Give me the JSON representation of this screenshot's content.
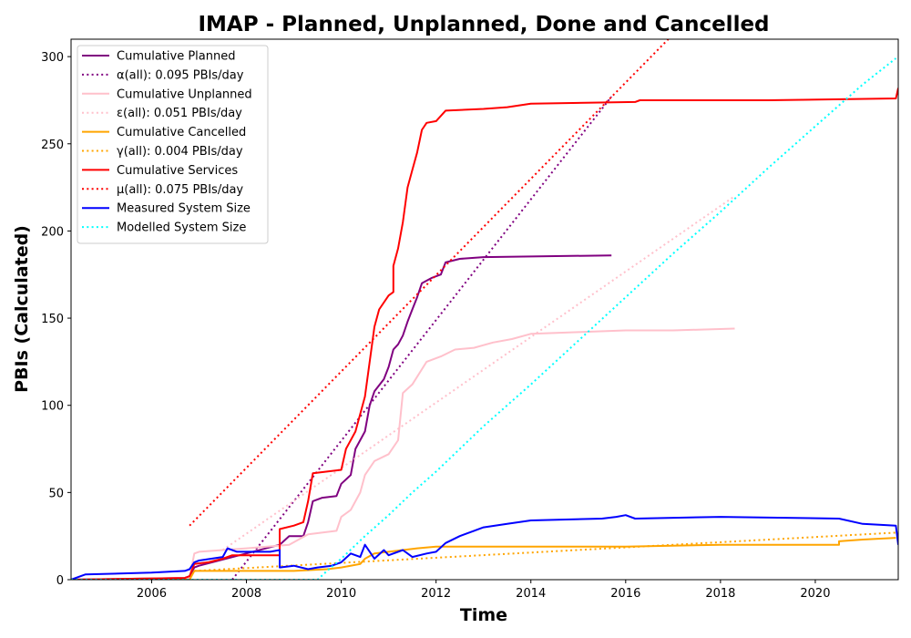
{
  "chart_data": {
    "type": "line",
    "title": "IMAP - Planned, Unplanned, Done  and Cancelled",
    "xlabel": "Time",
    "ylabel": "PBIs (Calculated)",
    "xlim": [
      2004.3,
      2021.75
    ],
    "ylim": [
      0,
      310
    ],
    "x_ticks": [
      2006,
      2008,
      2010,
      2012,
      2014,
      2016,
      2018,
      2020
    ],
    "y_ticks": [
      0,
      50,
      100,
      150,
      200,
      250,
      300
    ],
    "grid": false,
    "legend_position": "top-left",
    "series": [
      {
        "name": "Cumulative Planned",
        "style": "solid",
        "color": "#800080",
        "points": [
          [
            2004.3,
            0
          ],
          [
            2006.7,
            1
          ],
          [
            2006.8,
            2
          ],
          [
            2006.9,
            7
          ],
          [
            2007.0,
            8
          ],
          [
            2008.7,
            20
          ],
          [
            2008.9,
            25
          ],
          [
            2009.2,
            25
          ],
          [
            2009.3,
            33
          ],
          [
            2009.4,
            45
          ],
          [
            2009.6,
            47
          ],
          [
            2009.9,
            48
          ],
          [
            2010.0,
            55
          ],
          [
            2010.2,
            60
          ],
          [
            2010.3,
            75
          ],
          [
            2010.5,
            85
          ],
          [
            2010.6,
            100
          ],
          [
            2010.7,
            108
          ],
          [
            2010.9,
            115
          ],
          [
            2011.0,
            122
          ],
          [
            2011.1,
            132
          ],
          [
            2011.2,
            135
          ],
          [
            2011.3,
            140
          ],
          [
            2011.4,
            148
          ],
          [
            2011.5,
            155
          ],
          [
            2011.6,
            162
          ],
          [
            2011.7,
            170
          ],
          [
            2011.9,
            173
          ],
          [
            2012.1,
            175
          ],
          [
            2012.2,
            182
          ],
          [
            2012.5,
            184
          ],
          [
            2013.0,
            185
          ],
          [
            2015.7,
            186
          ]
        ]
      },
      {
        "name": "α(all): 0.095 PBIs/day",
        "style": "dotted",
        "color": "#800080",
        "points": [
          [
            2007.7,
            0
          ],
          [
            2015.7,
            277
          ]
        ]
      },
      {
        "name": "Cumulative Unplanned",
        "style": "solid",
        "color": "#ffc0cb",
        "points": [
          [
            2004.3,
            0
          ],
          [
            2006.8,
            1
          ],
          [
            2006.9,
            15
          ],
          [
            2007.0,
            16
          ],
          [
            2008.0,
            18
          ],
          [
            2008.9,
            20
          ],
          [
            2009.3,
            26
          ],
          [
            2009.9,
            28
          ],
          [
            2010.0,
            36
          ],
          [
            2010.2,
            40
          ],
          [
            2010.4,
            50
          ],
          [
            2010.5,
            60
          ],
          [
            2010.7,
            68
          ],
          [
            2011.0,
            72
          ],
          [
            2011.2,
            80
          ],
          [
            2011.3,
            107
          ],
          [
            2011.5,
            112
          ],
          [
            2011.8,
            125
          ],
          [
            2012.1,
            128
          ],
          [
            2012.4,
            132
          ],
          [
            2012.8,
            133
          ],
          [
            2013.2,
            136
          ],
          [
            2013.6,
            138
          ],
          [
            2014.0,
            141
          ],
          [
            2015.0,
            142
          ],
          [
            2016.0,
            143
          ],
          [
            2017.0,
            143
          ],
          [
            2018.3,
            144
          ]
        ]
      },
      {
        "name": "ε(all): 0.051 PBIs/day",
        "style": "dotted",
        "color": "#ffc0cb",
        "points": [
          [
            2007.5,
            17
          ],
          [
            2018.3,
            220
          ]
        ]
      },
      {
        "name": "Cumulative Cancelled",
        "style": "solid",
        "color": "#ffa500",
        "points": [
          [
            2004.3,
            0
          ],
          [
            2006.8,
            0
          ],
          [
            2006.9,
            5
          ],
          [
            2008.5,
            5
          ],
          [
            2009.0,
            5
          ],
          [
            2009.7,
            6
          ],
          [
            2010.0,
            7
          ],
          [
            2010.4,
            9
          ],
          [
            2010.5,
            12
          ],
          [
            2010.7,
            15
          ],
          [
            2011.0,
            16
          ],
          [
            2011.3,
            17
          ],
          [
            2011.6,
            18
          ],
          [
            2012.0,
            19
          ],
          [
            2014.0,
            19
          ],
          [
            2016.0,
            19
          ],
          [
            2018.0,
            20
          ],
          [
            2020.5,
            20
          ],
          [
            2020.5,
            22
          ],
          [
            2021.0,
            23
          ],
          [
            2021.7,
            24
          ]
        ]
      },
      {
        "name": "γ(all): 0.004 PBIs/day",
        "style": "dotted",
        "color": "#ffa500",
        "points": [
          [
            2006.9,
            5
          ],
          [
            2021.7,
            27
          ]
        ]
      },
      {
        "name": "Cumulative Services",
        "style": "solid",
        "color": "#ff0000",
        "points": [
          [
            2004.3,
            0
          ],
          [
            2006.7,
            1
          ],
          [
            2006.8,
            2
          ],
          [
            2006.9,
            9
          ],
          [
            2007.2,
            10
          ],
          [
            2007.5,
            12
          ],
          [
            2007.7,
            14
          ],
          [
            2008.7,
            14
          ],
          [
            2008.7,
            29
          ],
          [
            2009.0,
            31
          ],
          [
            2009.2,
            33
          ],
          [
            2009.3,
            45
          ],
          [
            2009.4,
            61
          ],
          [
            2009.7,
            62
          ],
          [
            2010.0,
            63
          ],
          [
            2010.1,
            75
          ],
          [
            2010.3,
            85
          ],
          [
            2010.5,
            105
          ],
          [
            2010.6,
            125
          ],
          [
            2010.7,
            145
          ],
          [
            2010.8,
            155
          ],
          [
            2011.0,
            163
          ],
          [
            2011.1,
            165
          ],
          [
            2011.1,
            180
          ],
          [
            2011.2,
            190
          ],
          [
            2011.3,
            205
          ],
          [
            2011.4,
            225
          ],
          [
            2011.5,
            235
          ],
          [
            2011.6,
            245
          ],
          [
            2011.7,
            258
          ],
          [
            2011.8,
            262
          ],
          [
            2012.0,
            263
          ],
          [
            2012.1,
            266
          ],
          [
            2012.2,
            269
          ],
          [
            2013.0,
            270
          ],
          [
            2013.5,
            271
          ],
          [
            2014.0,
            273
          ],
          [
            2016.2,
            274
          ],
          [
            2016.3,
            275
          ],
          [
            2019.0,
            275
          ],
          [
            2021.7,
            276
          ],
          [
            2021.75,
            282
          ]
        ]
      },
      {
        "name": "μ(all): 0.075 PBIs/day",
        "style": "dotted",
        "color": "#ff0000",
        "points": [
          [
            2006.8,
            31
          ],
          [
            2016.9,
            310
          ]
        ]
      },
      {
        "name": "Measured System Size",
        "style": "solid",
        "color": "#0000ff",
        "points": [
          [
            2004.3,
            0
          ],
          [
            2004.6,
            3
          ],
          [
            2006.0,
            4
          ],
          [
            2006.7,
            5
          ],
          [
            2006.8,
            6
          ],
          [
            2006.9,
            10
          ],
          [
            2007.0,
            11
          ],
          [
            2007.5,
            13
          ],
          [
            2007.6,
            18
          ],
          [
            2007.8,
            16
          ],
          [
            2008.5,
            16
          ],
          [
            2008.7,
            17
          ],
          [
            2008.7,
            7
          ],
          [
            2009.0,
            8
          ],
          [
            2009.3,
            6
          ],
          [
            2009.5,
            7
          ],
          [
            2009.8,
            8
          ],
          [
            2010.0,
            10
          ],
          [
            2010.2,
            15
          ],
          [
            2010.4,
            13
          ],
          [
            2010.5,
            20
          ],
          [
            2010.7,
            12
          ],
          [
            2010.9,
            17
          ],
          [
            2011.0,
            14
          ],
          [
            2011.3,
            17
          ],
          [
            2011.5,
            13
          ],
          [
            2011.8,
            15
          ],
          [
            2012.0,
            16
          ],
          [
            2012.2,
            21
          ],
          [
            2012.5,
            25
          ],
          [
            2012.8,
            28
          ],
          [
            2013.0,
            30
          ],
          [
            2013.5,
            32
          ],
          [
            2014.0,
            34
          ],
          [
            2015.5,
            35
          ],
          [
            2015.8,
            36
          ],
          [
            2016.0,
            37
          ],
          [
            2016.2,
            35
          ],
          [
            2018.0,
            36
          ],
          [
            2020.5,
            35
          ],
          [
            2021.0,
            32
          ],
          [
            2021.7,
            31
          ],
          [
            2021.75,
            20
          ]
        ]
      },
      {
        "name": "Modelled System Size",
        "style": "dotted",
        "color": "#00ffff",
        "points": [
          [
            2004.3,
            0
          ],
          [
            2009.5,
            0
          ],
          [
            2009.7,
            5
          ],
          [
            2010.0,
            12
          ],
          [
            2010.5,
            25
          ],
          [
            2011.0,
            37
          ],
          [
            2011.5,
            50
          ],
          [
            2012.0,
            62
          ],
          [
            2013.0,
            88
          ],
          [
            2014.0,
            112
          ],
          [
            2015.0,
            137
          ],
          [
            2016.0,
            162
          ],
          [
            2017.0,
            187
          ],
          [
            2018.0,
            211
          ],
          [
            2019.0,
            236
          ],
          [
            2020.0,
            260
          ],
          [
            2021.0,
            284
          ],
          [
            2021.7,
            299
          ]
        ]
      }
    ]
  }
}
